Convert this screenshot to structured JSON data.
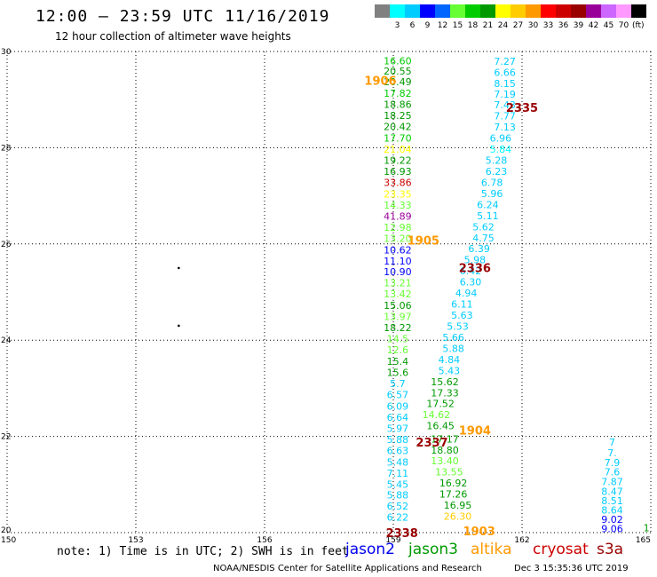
{
  "header": {
    "title": "12:00 – 23:59 UTC 11/16/2019",
    "subtitle": "12 hour collection of altimeter wave heights"
  },
  "scale": {
    "colors": [
      "#808080",
      "#00ffff",
      "#00ccff",
      "#0000ff",
      "#0066ff",
      "#66ff33",
      "#00cc00",
      "#009900",
      "#ffff00",
      "#ffcc00",
      "#ff9900",
      "#ff0000",
      "#cc0000",
      "#990000",
      "#990099",
      "#cc66ff",
      "#ff99ff",
      "#000000"
    ],
    "labels": [
      "",
      "3",
      "6",
      "9",
      "12",
      "15",
      "18",
      "21",
      "24",
      "27",
      "30",
      "33",
      "36",
      "39",
      "42",
      "45",
      "70",
      ""
    ],
    "unit": "(ft)"
  },
  "chart_data": {
    "type": "scatter",
    "x_ticks": [
      "150",
      "153",
      "156",
      "159",
      "162",
      "165"
    ],
    "y_ticks": [
      "20",
      "22",
      "24",
      "26",
      "28",
      "30"
    ],
    "xlim": [
      150,
      165
    ],
    "ylim": [
      20,
      30
    ],
    "grid": true,
    "labels": [
      {
        "x": 159.1,
        "y": 29.81,
        "text": "16.60",
        "color": "#00cc00"
      },
      {
        "x": 159.1,
        "y": 29.59,
        "text": "20.55",
        "color": "#009900"
      },
      {
        "x": 159.1,
        "y": 29.37,
        "text": "20.49",
        "color": "#009900"
      },
      {
        "x": 159.1,
        "y": 29.13,
        "text": "17.82",
        "color": "#00cc00"
      },
      {
        "x": 159.1,
        "y": 28.9,
        "text": "18.86",
        "color": "#009900"
      },
      {
        "x": 159.1,
        "y": 28.67,
        "text": "18.25",
        "color": "#009900"
      },
      {
        "x": 159.1,
        "y": 28.44,
        "text": "20.42",
        "color": "#009900"
      },
      {
        "x": 159.1,
        "y": 28.2,
        "text": "17.70",
        "color": "#00cc00"
      },
      {
        "x": 159.1,
        "y": 27.97,
        "text": "21.04",
        "color": "#ffff00"
      },
      {
        "x": 159.1,
        "y": 27.74,
        "text": "19.22",
        "color": "#009900"
      },
      {
        "x": 159.1,
        "y": 27.51,
        "text": "16.93",
        "color": "#009900"
      },
      {
        "x": 159.1,
        "y": 27.28,
        "text": "33.86",
        "color": "#cc0000"
      },
      {
        "x": 159.1,
        "y": 27.04,
        "text": "23.35",
        "color": "#ffff00"
      },
      {
        "x": 159.1,
        "y": 26.81,
        "text": "14.33",
        "color": "#66ff33"
      },
      {
        "x": 159.1,
        "y": 26.58,
        "text": "41.89",
        "color": "#990099"
      },
      {
        "x": 159.1,
        "y": 26.35,
        "text": "12.98",
        "color": "#66ff33"
      },
      {
        "x": 159.1,
        "y": 26.12,
        "text": "13.20",
        "color": "#66ff33"
      },
      {
        "x": 159.1,
        "y": 25.88,
        "text": "10.62",
        "color": "#0000ff"
      },
      {
        "x": 159.1,
        "y": 25.65,
        "text": "11.10",
        "color": "#0000ff"
      },
      {
        "x": 159.1,
        "y": 25.42,
        "text": "10.90",
        "color": "#0000ff"
      },
      {
        "x": 159.1,
        "y": 25.19,
        "text": "13.21",
        "color": "#66ff33"
      },
      {
        "x": 159.1,
        "y": 24.96,
        "text": "13.42",
        "color": "#66ff33"
      },
      {
        "x": 159.1,
        "y": 24.72,
        "text": "15.06",
        "color": "#009900"
      },
      {
        "x": 159.1,
        "y": 24.49,
        "text": "13.97",
        "color": "#66ff33"
      },
      {
        "x": 159.1,
        "y": 24.26,
        "text": "18.22",
        "color": "#009900"
      },
      {
        "x": 159.1,
        "y": 24.03,
        "text": "14.5",
        "color": "#66ff33"
      },
      {
        "x": 159.1,
        "y": 23.8,
        "text": "12.6",
        "color": "#66ff33"
      },
      {
        "x": 159.1,
        "y": 23.56,
        "text": "15.4",
        "color": "#009900"
      },
      {
        "x": 159.1,
        "y": 23.33,
        "text": "15.6",
        "color": "#009900"
      },
      {
        "x": 159.1,
        "y": 23.1,
        "text": "5.7",
        "color": "#00ccff"
      },
      {
        "x": 159.1,
        "y": 22.87,
        "text": "6.57",
        "color": "#00ccff"
      },
      {
        "x": 159.1,
        "y": 22.63,
        "text": "6.09",
        "color": "#00ccff"
      },
      {
        "x": 159.1,
        "y": 22.4,
        "text": "6.64",
        "color": "#00ccff"
      },
      {
        "x": 159.1,
        "y": 22.17,
        "text": "5.97",
        "color": "#00ccff"
      },
      {
        "x": 159.1,
        "y": 21.94,
        "text": "5.88",
        "color": "#00ccff"
      },
      {
        "x": 159.1,
        "y": 21.71,
        "text": "6.63",
        "color": "#00ccff"
      },
      {
        "x": 159.1,
        "y": 21.47,
        "text": "5.48",
        "color": "#00ccff"
      },
      {
        "x": 159.1,
        "y": 21.24,
        "text": "7.11",
        "color": "#00ccff"
      },
      {
        "x": 159.1,
        "y": 21.01,
        "text": "5.45",
        "color": "#00ccff"
      },
      {
        "x": 159.1,
        "y": 20.78,
        "text": "5.88",
        "color": "#00ccff"
      },
      {
        "x": 159.1,
        "y": 20.55,
        "text": "6.52",
        "color": "#00ccff"
      },
      {
        "x": 159.1,
        "y": 20.32,
        "text": "6.22",
        "color": "#00ccff"
      },
      {
        "x": 161.6,
        "y": 29.8,
        "text": "7.27",
        "color": "#00ccff"
      },
      {
        "x": 161.6,
        "y": 29.57,
        "text": "6.66",
        "color": "#00ccff"
      },
      {
        "x": 161.6,
        "y": 29.34,
        "text": "8.15",
        "color": "#00ccff"
      },
      {
        "x": 161.6,
        "y": 29.11,
        "text": "7.19",
        "color": "#00ccff"
      },
      {
        "x": 161.6,
        "y": 28.89,
        "text": "7.43",
        "color": "#00ccff"
      },
      {
        "x": 161.6,
        "y": 28.66,
        "text": "7.77",
        "color": "#00ccff"
      },
      {
        "x": 161.6,
        "y": 28.43,
        "text": "7.13",
        "color": "#00ccff"
      },
      {
        "x": 161.5,
        "y": 28.2,
        "text": "6.96",
        "color": "#00ccff"
      },
      {
        "x": 161.5,
        "y": 27.97,
        "text": "5.84",
        "color": "#00ffff"
      },
      {
        "x": 161.4,
        "y": 27.74,
        "text": "5.28",
        "color": "#00ccff"
      },
      {
        "x": 161.4,
        "y": 27.51,
        "text": "6.23",
        "color": "#00ccff"
      },
      {
        "x": 161.3,
        "y": 27.28,
        "text": "6.78",
        "color": "#00ccff"
      },
      {
        "x": 161.3,
        "y": 27.05,
        "text": "5.96",
        "color": "#00ccff"
      },
      {
        "x": 161.2,
        "y": 26.82,
        "text": "6.24",
        "color": "#00ccff"
      },
      {
        "x": 161.2,
        "y": 26.59,
        "text": "5.11",
        "color": "#00ccff"
      },
      {
        "x": 161.1,
        "y": 26.36,
        "text": "5.62",
        "color": "#00ccff"
      },
      {
        "x": 161.1,
        "y": 26.13,
        "text": "4.75",
        "color": "#00ccff"
      },
      {
        "x": 161.0,
        "y": 25.9,
        "text": "6.39",
        "color": "#00ccff"
      },
      {
        "x": 160.9,
        "y": 25.67,
        "text": "5.98",
        "color": "#00ccff"
      },
      {
        "x": 160.8,
        "y": 25.44,
        "text": "6.42",
        "color": "#00ccff"
      },
      {
        "x": 160.8,
        "y": 25.21,
        "text": "6.30",
        "color": "#00ccff"
      },
      {
        "x": 160.7,
        "y": 24.98,
        "text": "4.94",
        "color": "#00ccff"
      },
      {
        "x": 160.6,
        "y": 24.75,
        "text": "6.11",
        "color": "#00ccff"
      },
      {
        "x": 160.6,
        "y": 24.52,
        "text": "5.63",
        "color": "#00ccff"
      },
      {
        "x": 160.5,
        "y": 24.29,
        "text": "5.53",
        "color": "#00ccff"
      },
      {
        "x": 160.4,
        "y": 24.06,
        "text": "5.66",
        "color": "#00ccff"
      },
      {
        "x": 160.4,
        "y": 23.83,
        "text": "5.88",
        "color": "#00ccff"
      },
      {
        "x": 160.3,
        "y": 23.6,
        "text": "4.84",
        "color": "#00ccff"
      },
      {
        "x": 160.3,
        "y": 23.37,
        "text": "5.43",
        "color": "#00ccff"
      },
      {
        "x": 160.2,
        "y": 23.14,
        "text": "15.62",
        "color": "#009900"
      },
      {
        "x": 160.2,
        "y": 22.91,
        "text": "17.33",
        "color": "#009900"
      },
      {
        "x": 160.1,
        "y": 22.68,
        "text": "17.52",
        "color": "#009900"
      },
      {
        "x": 160.0,
        "y": 22.45,
        "text": "14.62",
        "color": "#66ff33"
      },
      {
        "x": 160.1,
        "y": 22.22,
        "text": "16.45",
        "color": "#009900"
      },
      {
        "x": 160.2,
        "y": 21.95,
        "text": "17.17",
        "color": "#009900"
      },
      {
        "x": 160.2,
        "y": 21.72,
        "text": "18.80",
        "color": "#009900"
      },
      {
        "x": 160.2,
        "y": 21.49,
        "text": "13.40",
        "color": "#66ff33"
      },
      {
        "x": 160.3,
        "y": 21.26,
        "text": "13.55",
        "color": "#66ff33"
      },
      {
        "x": 160.4,
        "y": 21.03,
        "text": "16.92",
        "color": "#009900"
      },
      {
        "x": 160.4,
        "y": 20.8,
        "text": "17.26",
        "color": "#009900"
      },
      {
        "x": 160.5,
        "y": 20.57,
        "text": "16.95",
        "color": "#009900"
      },
      {
        "x": 160.5,
        "y": 20.34,
        "text": "26.30",
        "color": "#ffcc00"
      },
      {
        "x": 164.1,
        "y": 21.88,
        "text": "7",
        "color": "#00ccff"
      },
      {
        "x": 164.1,
        "y": 21.66,
        "text": "7.",
        "color": "#00ccff"
      },
      {
        "x": 164.1,
        "y": 21.46,
        "text": "7.9",
        "color": "#00ccff"
      },
      {
        "x": 164.1,
        "y": 21.26,
        "text": "7.6",
        "color": "#00ccff"
      },
      {
        "x": 164.1,
        "y": 21.06,
        "text": "7.87",
        "color": "#00ccff"
      },
      {
        "x": 164.1,
        "y": 20.86,
        "text": "8.47",
        "color": "#00ccff"
      },
      {
        "x": 164.1,
        "y": 20.66,
        "text": "8.51",
        "color": "#00ccff"
      },
      {
        "x": 164.1,
        "y": 20.47,
        "text": "8.64",
        "color": "#00ccff"
      },
      {
        "x": 164.1,
        "y": 20.28,
        "text": "9.02",
        "color": "#0000ff"
      },
      {
        "x": 164.1,
        "y": 20.08,
        "text": "9.06",
        "color": "#0000ff"
      },
      {
        "x": 164.9,
        "y": 20.1,
        "text": "1",
        "color": "#009900"
      }
    ],
    "time_labels": [
      {
        "x": 158.7,
        "y": 29.4,
        "text": "1906",
        "color": "#ff9900"
      },
      {
        "x": 159.7,
        "y": 26.08,
        "text": "1905",
        "color": "#ff9900"
      },
      {
        "x": 160.9,
        "y": 22.13,
        "text": "1904",
        "color": "#ff9900"
      },
      {
        "x": 161.0,
        "y": 20.04,
        "text": "1903",
        "color": "#ff9900"
      },
      {
        "x": 162.0,
        "y": 28.84,
        "text": "2335",
        "color": "#990000"
      },
      {
        "x": 160.9,
        "y": 25.51,
        "text": "2336",
        "color": "#990000"
      },
      {
        "x": 159.9,
        "y": 21.88,
        "text": "2337",
        "color": "#990000"
      },
      {
        "x": 159.2,
        "y": 20.0,
        "text": "2338",
        "color": "#990000"
      }
    ],
    "dots": [
      {
        "x": 154.0,
        "y": 25.5
      },
      {
        "x": 154.0,
        "y": 24.3
      }
    ]
  },
  "legend": {
    "note": "note: 1) Time is in UTC; 2) SWH is in feet",
    "satellites": [
      {
        "name": "jason2",
        "color": "#0000ee"
      },
      {
        "name": "jason3",
        "color": "#009900"
      },
      {
        "name": "altika",
        "color": "#ff9900"
      },
      {
        "name": "cryosat",
        "color": "#cc0000"
      },
      {
        "name": "s3a",
        "color": "#990000"
      }
    ]
  },
  "footer": {
    "credit": "NOAA/NESDIS Center for Satellite Applications and Research",
    "date": "Dec  3 15:35:36 UTC 2019"
  }
}
